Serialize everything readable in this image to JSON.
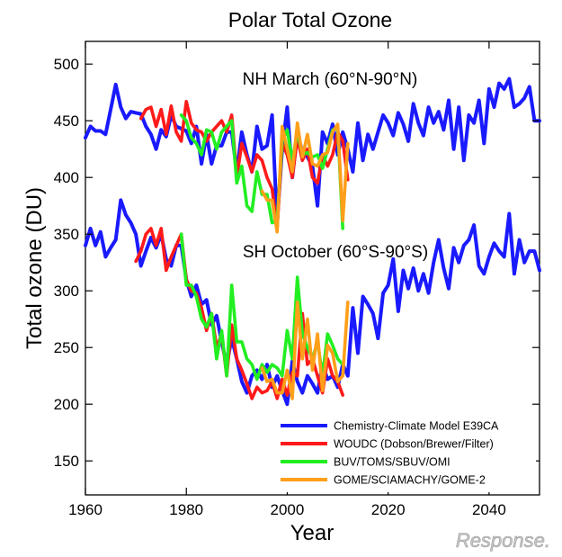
{
  "chart_data": {
    "type": "line",
    "title": "Polar Total Ozone",
    "xlabel": "Year",
    "ylabel": "Total ozone (DU)",
    "xlim": [
      1960,
      2050
    ],
    "ylim": [
      120,
      520
    ],
    "xticks": [
      1960,
      1980,
      2000,
      2020,
      2040
    ],
    "yticks": [
      150,
      200,
      250,
      300,
      350,
      400,
      450,
      500
    ],
    "annotations": [
      "NH March (60°N-90°N)",
      "SH October (60°S-90°S)"
    ],
    "legend_position": "bottom-right",
    "series": [
      {
        "name": "Chemistry-Climate Model E39CA",
        "color": "#1a1aff",
        "panels": [
          {
            "region": "NH March",
            "x": [
              1960,
              1961,
              1962,
              1963,
              1964,
              1965,
              1966,
              1967,
              1968,
              1969,
              1970,
              1971,
              1972,
              1973,
              1974,
              1975,
              1976,
              1977,
              1978,
              1979,
              1980,
              1981,
              1982,
              1983,
              1984,
              1985,
              1986,
              1987,
              1988,
              1989,
              1990,
              1991,
              1992,
              1993,
              1994,
              1995,
              1996,
              1997,
              1998,
              1999,
              2000,
              2001,
              2002,
              2003,
              2004,
              2005,
              2006,
              2007,
              2008,
              2009,
              2010,
              2011,
              2012,
              2013,
              2014,
              2015,
              2016,
              2017,
              2018,
              2019,
              2020,
              2021,
              2022,
              2023,
              2024,
              2025,
              2026,
              2027,
              2028,
              2029,
              2030,
              2031,
              2032,
              2033,
              2034,
              2035,
              2036,
              2037,
              2038,
              2039,
              2040,
              2041,
              2042,
              2043,
              2044,
              2045,
              2046,
              2047,
              2048,
              2049,
              2050
            ],
            "y": [
              435,
              445,
              441,
              441,
              438,
              460,
              482,
              462,
              452,
              458,
              457,
              456,
              445,
              438,
              425,
              442,
              436,
              455,
              445,
              443,
              441,
              430,
              445,
              412,
              438,
              412,
              428,
              428,
              440,
              440,
              405,
              440,
              420,
              405,
              445,
              425,
              428,
              455,
              360,
              425,
              462,
              400,
              440,
              422,
              418,
              410,
              375,
              440,
              430,
              447,
              420,
              440,
              425,
              405,
              448,
              415,
              438,
              425,
              440,
              455,
              448,
              437,
              457,
              447,
              432,
              465,
              448,
              437,
              462,
              448,
              458,
              442,
              468,
              425,
              462,
              415,
              455,
              448,
              468,
              430,
              478,
              462,
              483,
              478,
              487,
              462,
              465,
              470,
              480,
              450,
              450
            ]
          },
          {
            "region": "SH October",
            "x": [
              1960,
              1961,
              1962,
              1963,
              1964,
              1965,
              1966,
              1967,
              1968,
              1969,
              1970,
              1971,
              1972,
              1973,
              1974,
              1975,
              1976,
              1977,
              1978,
              1979,
              1980,
              1981,
              1982,
              1983,
              1984,
              1985,
              1986,
              1987,
              1988,
              1989,
              1990,
              1991,
              1992,
              1993,
              1994,
              1995,
              1996,
              1997,
              1998,
              1999,
              2000,
              2001,
              2002,
              2003,
              2004,
              2005,
              2006,
              2007,
              2008,
              2009,
              2010,
              2011,
              2012,
              2013,
              2014,
              2015,
              2016,
              2017,
              2018,
              2019,
              2020,
              2021,
              2022,
              2023,
              2024,
              2025,
              2026,
              2027,
              2028,
              2029,
              2030,
              2031,
              2032,
              2033,
              2034,
              2035,
              2036,
              2037,
              2038,
              2039,
              2040,
              2041,
              2042,
              2043,
              2044,
              2045,
              2046,
              2047,
              2048,
              2049,
              2050
            ],
            "y": [
              340,
              355,
              340,
              352,
              330,
              338,
              345,
              380,
              367,
              360,
              350,
              322,
              335,
              347,
              338,
              350,
              328,
              322,
              340,
              340,
              310,
              295,
              305,
              288,
              292,
              270,
              278,
              255,
              235,
              258,
              240,
              220,
              210,
              225,
              230,
              222,
              235,
              215,
              225,
              212,
              200,
              238,
              220,
              210,
              225,
              218,
              210,
              235,
              222,
              225,
              215,
              235,
              225,
              285,
              245,
              295,
              288,
              280,
              258,
              298,
              305,
              328,
              282,
              318,
              302,
              320,
              300,
              315,
              298,
              325,
              345,
              320,
              302,
              338,
              325,
              340,
              345,
              358,
              322,
              315,
              330,
              342,
              335,
              330,
              368,
              315,
              345,
              325,
              335,
              335,
              318
            ]
          }
        ]
      },
      {
        "name": "WOUDC (Dobson/Brewer/Filter)",
        "color": "#ff1a1a",
        "panels": [
          {
            "region": "NH March",
            "x": [
              1971,
              1972,
              1973,
              1974,
              1975,
              1976,
              1977,
              1978,
              1979,
              1980,
              1981,
              1982,
              1983,
              1984,
              1985,
              1986,
              1987,
              1988,
              1989,
              1990,
              1991,
              1992,
              1993,
              1994,
              1995,
              1996,
              1997,
              1998,
              1999,
              2000,
              2001,
              2002,
              2003,
              2004,
              2005,
              2006,
              2007,
              2008,
              2009,
              2010,
              2011,
              2012
            ],
            "y": [
              452,
              460,
              462,
              445,
              460,
              438,
              463,
              440,
              432,
              467,
              448,
              442,
              440,
              432,
              440,
              445,
              450,
              440,
              455,
              400,
              430,
              418,
              405,
              420,
              415,
              400,
              390,
              355,
              430,
              420,
              400,
              435,
              415,
              425,
              400,
              395,
              420,
              410,
              420,
              440,
              432,
              398
            ]
          },
          {
            "region": "SH October",
            "x": [
              1970,
              1971,
              1972,
              1973,
              1974,
              1975,
              1976,
              1977,
              1978,
              1979,
              1980,
              1981,
              1982,
              1983,
              1984,
              1985,
              1986,
              1987,
              1988,
              1989,
              1990,
              1991,
              1992,
              1993,
              1994,
              1995,
              1996,
              1997,
              1998,
              1999,
              2000,
              2001,
              2002,
              2003,
              2004,
              2005,
              2006,
              2007,
              2008,
              2009,
              2010,
              2011
            ],
            "y": [
              326,
              335,
              350,
              355,
              340,
              355,
              318,
              330,
              340,
              350,
              310,
              300,
              298,
              285,
              265,
              280,
              250,
              262,
              225,
              270,
              240,
              230,
              218,
              205,
              215,
              210,
              212,
              220,
              205,
              222,
              208,
              228,
              225,
              280,
              235,
              240,
              225,
              210,
              240,
              225,
              220,
              208
            ]
          }
        ]
      },
      {
        "name": "BUV/TOMS/SBUV/OMI",
        "color": "#22ee22",
        "panels": [
          {
            "region": "NH March",
            "x": [
              1979,
              1980,
              1981,
              1982,
              1983,
              1984,
              1985,
              1986,
              1987,
              1988,
              1989,
              1990,
              1991,
              1992,
              1993,
              1994,
              1995,
              1996,
              1997,
              1998,
              1999,
              2000,
              2001,
              2002,
              2003,
              2004,
              2005,
              2006,
              2007,
              2008,
              2009,
              2010,
              2011
            ],
            "y": [
              455,
              450,
              435,
              430,
              420,
              442,
              440,
              425,
              440,
              445,
              450,
              395,
              410,
              375,
              370,
              405,
              385,
              385,
              360,
              362,
              432,
              442,
              415,
              440,
              420,
              422,
              418,
              420,
              408,
              425,
              442,
              443,
              355
            ]
          },
          {
            "region": "SH October",
            "x": [
              1979,
              1980,
              1981,
              1982,
              1983,
              1984,
              1985,
              1986,
              1987,
              1988,
              1989,
              1990,
              1991,
              1992,
              1993,
              1994,
              1995,
              1996,
              1997,
              1998,
              1999,
              2000,
              2001,
              2002,
              2003,
              2004,
              2005,
              2006,
              2007,
              2008,
              2009,
              2010,
              2011
            ],
            "y": [
              350,
              305,
              305,
              295,
              275,
              268,
              280,
              240,
              265,
              225,
              305,
              255,
              255,
              240,
              235,
              222,
              235,
              228,
              235,
              232,
              225,
              265,
              240,
              312,
              262,
              250,
              240,
              255,
              225,
              262,
              252,
              240,
              235
            ]
          }
        ]
      },
      {
        "name": "GOME/SCIAMACHY/GOME-2",
        "color": "#ff9f1a",
        "panels": [
          {
            "region": "NH March",
            "x": [
              1995,
              1996,
              1997,
              1998,
              1999,
              2000,
              2001,
              2002,
              2003,
              2004,
              2005,
              2006,
              2007,
              2008,
              2009,
              2010,
              2011,
              2012
            ],
            "y": [
              388,
              380,
              380,
              352,
              445,
              425,
              405,
              448,
              418,
              438,
              412,
              410,
              420,
              422,
              440,
              447,
              362,
              430
            ]
          },
          {
            "region": "SH October",
            "x": [
              1995,
              1996,
              1997,
              1998,
              1999,
              2000,
              2001,
              2002,
              2003,
              2004,
              2005,
              2006,
              2007,
              2008,
              2009,
              2010,
              2011,
              2012
            ],
            "y": [
              232,
              220,
              222,
              210,
              210,
              230,
              205,
              290,
              240,
              275,
              230,
              262,
              212,
              252,
              245,
              220,
              225,
              290
            ]
          }
        ]
      }
    ]
  },
  "watermark": "Response."
}
